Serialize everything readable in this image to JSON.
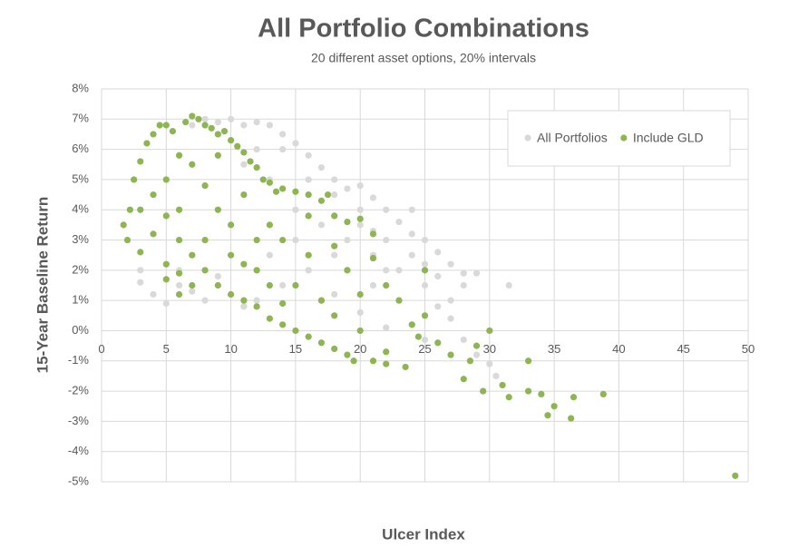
{
  "chart_data": {
    "type": "scatter",
    "title": "All Portfolio Combinations",
    "subtitle": "20 different asset options, 20% intervals",
    "x_label": "Ulcer Index",
    "y_label": "15-Year Baseline Return",
    "xlim": [
      0,
      50
    ],
    "ylim": [
      -5,
      8
    ],
    "xticks": [
      0,
      5,
      10,
      15,
      20,
      25,
      30,
      35,
      40,
      45,
      50
    ],
    "yticks": [
      {
        "value": 8,
        "label": "8%"
      },
      {
        "value": 7,
        "label": "7%"
      },
      {
        "value": 6,
        "label": "6%"
      },
      {
        "value": 5,
        "label": "5%"
      },
      {
        "value": 4,
        "label": "4%"
      },
      {
        "value": 3,
        "label": "3%"
      },
      {
        "value": 2,
        "label": "2%"
      },
      {
        "value": 1,
        "label": "1%"
      },
      {
        "value": 0,
        "label": "0%"
      },
      {
        "value": -1,
        "label": "-1%"
      },
      {
        "value": -2,
        "label": "-2%"
      },
      {
        "value": -3,
        "label": "-3%"
      },
      {
        "value": -4,
        "label": "-4%"
      },
      {
        "value": -5,
        "label": "-5%"
      }
    ],
    "grid": true,
    "legend": "upper right",
    "series": [
      {
        "name": "All Portfolios",
        "color": "#d9d9d9",
        "x": [
          3,
          4,
          5,
          6,
          7,
          8,
          9,
          10,
          11,
          12,
          13,
          14,
          15,
          16,
          17,
          18,
          19,
          20,
          21,
          22,
          23,
          24,
          25,
          26,
          27,
          28,
          29,
          31.5,
          28,
          26,
          27,
          28,
          29,
          30,
          30.5,
          29.5,
          25,
          24,
          22,
          20,
          18,
          16,
          14,
          13,
          15,
          17,
          19,
          21,
          23,
          22,
          20,
          18,
          16,
          12,
          10,
          8,
          11,
          9,
          7,
          25,
          24,
          21,
          19,
          17,
          26,
          23,
          15,
          14,
          13,
          6,
          3,
          20,
          22,
          18,
          24,
          12,
          11,
          10,
          27,
          25,
          21
        ],
        "values": [
          2,
          1.2,
          0.9,
          1.5,
          6.8,
          7,
          6.9,
          7,
          6.8,
          6.9,
          6.8,
          6.5,
          6.2,
          5.8,
          5.4,
          5,
          4.7,
          4.8,
          4.4,
          4,
          3.6,
          3.2,
          3,
          2.6,
          2.2,
          1.9,
          1.9,
          1.5,
          1.5,
          0.8,
          0.4,
          -0.3,
          -0.8,
          -1.1,
          -1.5,
          -2,
          -0.3,
          0.2,
          0.1,
          0.6,
          1.2,
          2,
          6,
          5,
          4,
          3.5,
          3,
          2.5,
          2,
          3,
          4,
          4.5,
          5,
          1,
          1.2,
          1,
          0.8,
          1.8,
          1.3,
          1.5,
          2.5,
          1.5,
          2,
          1,
          1.8,
          1,
          3,
          1.5,
          2.5,
          2,
          1.6,
          3.5,
          2,
          2.5,
          4,
          6,
          5.5,
          6.3,
          1,
          2.2,
          3.3
        ]
      },
      {
        "name": "Include GLD",
        "color": "#8db552",
        "x": [
          1.7,
          2,
          2.2,
          2.5,
          3,
          3,
          3.5,
          4,
          4.5,
          5,
          5,
          5.5,
          6,
          6.5,
          7,
          7.5,
          8,
          8.5,
          9,
          9.5,
          10,
          10.5,
          11,
          11.5,
          12,
          12.5,
          13,
          13.5,
          14,
          15,
          16,
          17,
          17.5,
          18,
          19,
          20,
          21,
          3,
          4,
          5,
          6,
          7,
          8,
          9,
          10,
          11,
          12,
          13,
          4,
          6,
          7,
          8,
          9,
          10,
          11,
          12,
          13,
          14,
          15,
          16,
          17,
          18,
          19,
          19.5,
          21,
          22,
          23.5,
          22,
          20,
          18,
          17,
          15,
          16,
          19,
          20,
          21,
          22,
          23,
          24,
          24.5,
          25,
          25,
          26,
          27,
          28,
          28.5,
          29,
          29.5,
          30,
          31,
          31.5,
          33,
          33,
          34,
          34.5,
          35,
          36.3,
          36.5,
          38.8,
          49,
          14,
          16,
          18,
          12,
          10,
          5,
          6,
          8,
          9,
          11,
          13,
          14,
          7,
          6,
          5
        ],
        "values": [
          3.5,
          3,
          4,
          5,
          5.6,
          2.6,
          6.2,
          6.5,
          6.8,
          6.8,
          2.2,
          6.6,
          1.9,
          6.9,
          7.1,
          7,
          6.8,
          6.7,
          6.5,
          6.6,
          6.3,
          6.1,
          5.9,
          5.6,
          5.4,
          5,
          4.9,
          4.6,
          4.7,
          4.6,
          4.5,
          4.3,
          4.5,
          3.8,
          3.6,
          3.7,
          3.2,
          4,
          4.5,
          5,
          4,
          5.5,
          3,
          4,
          3.5,
          4.5,
          3,
          3.5,
          3.2,
          3,
          2.5,
          2,
          1.5,
          1.2,
          1,
          0.8,
          0.4,
          0.2,
          0,
          -0.2,
          -0.4,
          -0.6,
          -0.8,
          -1,
          -1,
          -1.1,
          -1.2,
          -0.7,
          0,
          0.5,
          1,
          1.5,
          2.5,
          2,
          1.2,
          2.4,
          1.5,
          1,
          0.2,
          -0.2,
          2,
          0.5,
          -0.4,
          -0.8,
          -1.6,
          -1,
          -0.5,
          -2,
          0,
          -1.8,
          -2.2,
          -1,
          -2,
          -2.1,
          -2.8,
          -2.5,
          -2.9,
          -2.2,
          -2.1,
          -4.8,
          3,
          3.8,
          2.8,
          2,
          2.5,
          3.8,
          5.8,
          4.8,
          5.8,
          2.2,
          1.5,
          0.9,
          1.5,
          1.2,
          1.7
        ]
      }
    ]
  }
}
